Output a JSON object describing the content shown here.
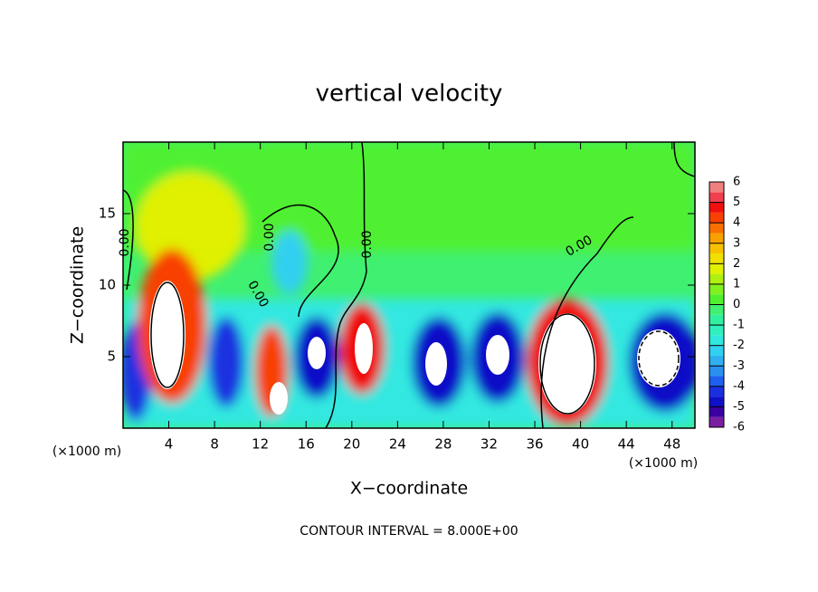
{
  "chart_data": {
    "type": "contour",
    "title": "vertical velocity",
    "xlabel": "X−coordinate",
    "ylabel": "Z−coordinate",
    "x_unit": "(×1000 m)",
    "note": "CONTOUR INTERVAL = 8.000E+00",
    "xlim": [
      0,
      50
    ],
    "xticks": [
      4,
      8,
      12,
      16,
      20,
      24,
      28,
      32,
      36,
      40,
      44,
      48
    ],
    "ylim": [
      0,
      20
    ],
    "yticks": [
      5,
      10,
      15
    ],
    "contour_labels": [
      "0.00",
      "0.00",
      "0.00",
      "0.00",
      "0.00"
    ],
    "colorbar_lim": [
      -6,
      6
    ],
    "colorbar_ticks": [
      6,
      5,
      4,
      3,
      2,
      1,
      0,
      -1,
      -2,
      -3,
      -4,
      -5,
      -6
    ],
    "colorbar_colors": [
      "#7a1fa2",
      "#3a00a0",
      "#1010c8",
      "#1a30e0",
      "#2060f0",
      "#2a90f0",
      "#30b0f0",
      "#30d0f0",
      "#30e8e0",
      "#30f0c0",
      "#30f0a0",
      "#40f070",
      "#50f030",
      "#80f020",
      "#b0f010",
      "#e0f000",
      "#f0e000",
      "#f8c000",
      "#f8a000",
      "#f87000",
      "#f84000",
      "#f01010",
      "#f04050",
      "#f08080"
    ]
  }
}
